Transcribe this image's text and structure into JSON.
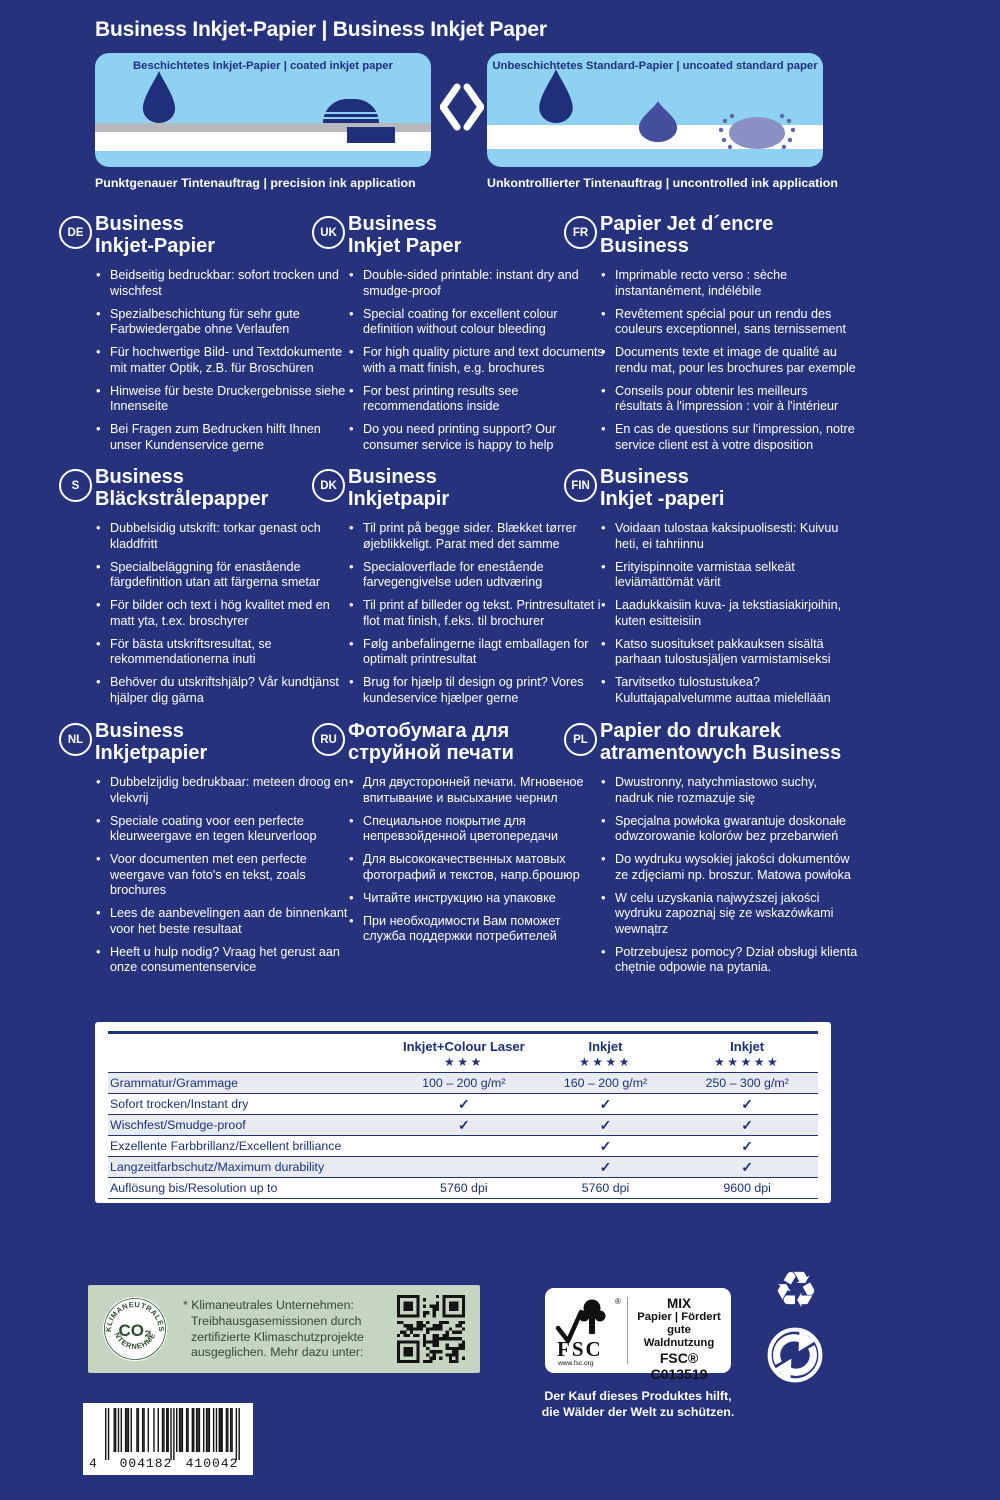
{
  "page_title": "Business Inkjet-Papier | Business Inkjet Paper",
  "comparison": {
    "left": {
      "header": "Beschichtetes Inkjet-Papier | coated inkjet paper",
      "caption": "Punktgenauer Tintenauftrag | precision ink application"
    },
    "right": {
      "header": "Unbeschichtetes Standard-Papier | uncoated standard paper",
      "caption": "Unkontrollierter Tintenauftrag | uncontrolled ink application"
    }
  },
  "sections": [
    {
      "code": "DE",
      "title_line1": "Business",
      "title_line2": "Inkjet-Papier",
      "bullets": [
        "Beidseitig bedruckbar: sofort trocken und wischfest",
        "Spezialbeschichtung für sehr gute Farbwiedergabe ohne Verlaufen",
        "Für hochwertige Bild- und Textdokumente mit matter Optik, z.B. für Broschüren",
        "Hinweise für beste Druckergebnisse siehe Innenseite",
        "Bei Fragen zum Bedrucken hilft Ihnen unser Kundenservice gerne"
      ]
    },
    {
      "code": "UK",
      "title_line1": "Business",
      "title_line2": "Inkjet Paper",
      "bullets": [
        "Double-sided printable: instant dry and smudge-proof",
        "Special coating for excellent colour definition without colour bleeding",
        "For high quality picture and text documents with a matt finish, e.g. brochures",
        "For best printing results see recommendations inside",
        "Do you need printing support? Our consumer service is happy to help"
      ]
    },
    {
      "code": "FR",
      "title_line1": "Papier Jet d´encre",
      "title_line2": "Business",
      "bullets": [
        "Imprimable recto verso : sèche instantanément, indélébile",
        "Revêtement spécial pour un rendu des couleurs exceptionnel, sans ternissement",
        "Documents texte et image de qualité au rendu mat, pour les brochures par exemple",
        "Conseils pour obtenir les meilleurs résultats à l'impression : voir à l'intérieur",
        "En cas de questions sur l'impression, notre service client est à votre disposition"
      ]
    },
    {
      "code": "S",
      "title_line1": "Business",
      "title_line2": "Bläckstrålepapper",
      "bullets": [
        "Dubbelsidig utskrift: torkar genast och kladdfritt",
        "Specialbeläggning för enastående färgdefinition utan att färgerna smetar",
        "För bilder och text i hög kvalitet med en matt yta, t.ex. broschyrer",
        "För bästa utskriftsresultat, se rekommendationerna inuti",
        "Behöver du utskriftshjälp? Vår kundtjänst hjälper dig gärna"
      ]
    },
    {
      "code": "DK",
      "title_line1": "Business",
      "title_line2": "Inkjetpapir",
      "bullets": [
        "Til print på begge sider. Blækket tørrer øjeblikkeligt. Parat med det samme",
        "Specialoverflade for enestående farvegengivelse uden udtværing",
        "Til print af billeder og tekst. Printresultatet i flot mat finish, f.eks. til brochurer",
        "Følg anbefalingerne ilagt emballagen for optimalt printresultat",
        "Brug for hjælp til design og print? Vores kundeservice hjælper gerne"
      ]
    },
    {
      "code": "FIN",
      "title_line1": "Business",
      "title_line2": "Inkjet -paperi",
      "bullets": [
        "Voidaan tulostaa kaksipuolisesti: Kuivuu heti, ei tahriinnu",
        "Erityispinnoite varmistaa selkeät leviämättömät värit",
        "Laadukkaisiin kuva- ja tekstiasiakirjoihin, kuten esitteisiin",
        "Katso suositukset pakkauksen sisältä parhaan tulostusjäljen varmistamiseksi",
        "Tarvitsetko tulostustukea? Kuluttajapalvelumme auttaa mielellään"
      ]
    },
    {
      "code": "NL",
      "title_line1": "Business",
      "title_line2": "Inkjetpapier",
      "bullets": [
        "Dubbelzijdig bedrukbaar: meteen droog en vlekvrij",
        "Speciale coating voor een perfecte kleurweergave en tegen kleurverloop",
        "Voor documenten met een perfecte weergave van foto's en tekst, zoals brochures",
        "Lees de aanbevelingen aan de binnenkant voor het beste resultaat",
        "Heeft u hulp nodig? Vraag het gerust aan onze consumentenservice"
      ]
    },
    {
      "code": "RU",
      "title_line1": "Фотобумага для",
      "title_line2": "струйной печати",
      "bullets": [
        "Для двусторонней печати. Мгновеное впитывание и высыхание чернил",
        "Специальное покрытие для непревзойденной цветопередачи",
        "Для высококачественных матовых фотографий и текстов, напр.брошюр",
        "Читайте инструкцию на упаковке",
        "При необходимости Вам поможет служба поддержки потребителей"
      ]
    },
    {
      "code": "PL",
      "title_line1": "Papier do drukarek",
      "title_line2": "atramentowych Business",
      "bullets": [
        "Dwustronny, natychmiastowo suchy, nadruk nie rozmazuje się",
        "Specjalna powłoka gwarantuje doskonałe odwzorowanie kolorów bez przebarwień",
        "Do wydruku wysokiej jakości dokumentów ze zdjęciami np. broszur. Matowa powłoka",
        "W celu uzyskania najwyższej jakości wydruku zapoznaj się ze wskazówkami wewnątrz",
        "Potrzebujesz pomocy? Dział obsługi klienta chętnie odpowie na pytania."
      ]
    }
  ],
  "table": {
    "columns": [
      {
        "label": "Inkjet+Colour Laser",
        "stars": 3
      },
      {
        "label": "Inkjet",
        "stars": 4
      },
      {
        "label": "Inkjet",
        "stars": 5
      }
    ],
    "rows": [
      {
        "label": "Grammatur/Grammage",
        "values": [
          "100 – 200 g/m²",
          "160 – 200 g/m²",
          "250 – 300 g/m²"
        ]
      },
      {
        "label": "Sofort trocken/Instant dry",
        "values": [
          "✓",
          "✓",
          "✓"
        ]
      },
      {
        "label": "Wischfest/Smudge-proof",
        "values": [
          "✓",
          "✓",
          "✓"
        ]
      },
      {
        "label": "Exzellente Farbbrillanz/Excellent brilliance",
        "values": [
          "",
          "✓",
          "✓"
        ]
      },
      {
        "label": "Langzeitfarbschutz/Maximum durability",
        "values": [
          "",
          "✓",
          "✓"
        ]
      },
      {
        "label": "Auflösung bis/Resolution up to",
        "values": [
          "5760 dpi",
          "5760 dpi",
          "9600 dpi"
        ]
      }
    ]
  },
  "footer": {
    "climate": {
      "badge_top": "KLIMANEUTRALES",
      "badge_center": "CO₂",
      "badge_bottom": "UNTERNEHMEN",
      "text": "* Klimaneutrales Unternehmen: Treibhausgasemissionen durch zertifizierte Klimaschutzprojekte ausgeglichen. Mehr dazu unter:"
    },
    "fsc": {
      "brand": "FSC",
      "reg": "®",
      "url": "www.fsc.org",
      "type": "MIX",
      "line1": "Papier | Fördert",
      "line2": "gute Waldnutzung",
      "license": "FSC® C013519"
    },
    "fsc_caption_line1": "Der Kauf dieses Produktes hilft,",
    "fsc_caption_line2": "die Wälder der Welt zu schützen.",
    "barcode": {
      "digits_grouped": "4 004182 410042"
    }
  },
  "colors": {
    "background": "#26337C",
    "panel_blue": "#8FD1F1",
    "navy": "#20307E",
    "table_shade": "#E8ECF2",
    "climate_bg": "#C5D5C2",
    "climate_text": "#2E4B2E"
  }
}
